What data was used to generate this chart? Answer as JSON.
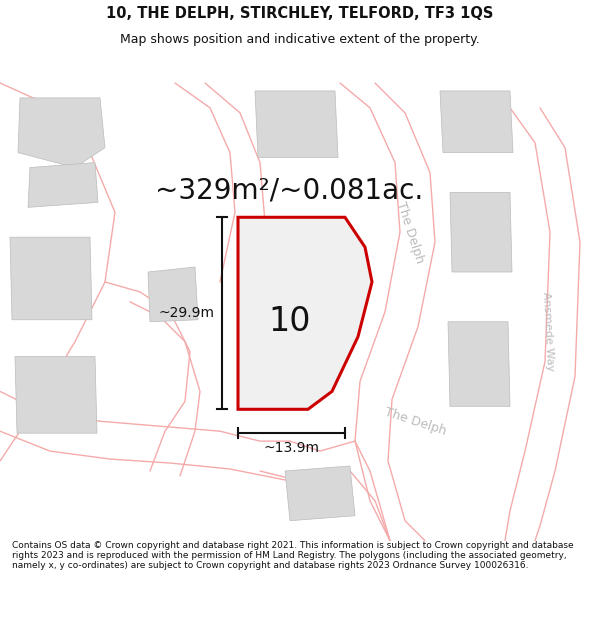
{
  "title_line1": "10, THE DELPH, STIRCHLEY, TELFORD, TF3 1QS",
  "title_line2": "Map shows position and indicative extent of the property.",
  "area_text": "~329m²/~0.081ac.",
  "label_10": "10",
  "dim_height": "~29.9m",
  "dim_width": "~13.9m",
  "road_label1": "The Delph",
  "road_label2": "The Delph",
  "road_label3": "Ansmede Way",
  "footer_text": "Contains OS data © Crown copyright and database right 2021. This information is subject to Crown copyright and database rights 2023 and is reproduced with the permission of HM Land Registry. The polygons (including the associated geometry, namely x, y co-ordinates) are subject to Crown copyright and database rights 2023 Ordnance Survey 100026316.",
  "bg_color": "#ffffff",
  "map_bg": "#ffffff",
  "plot_border_color": "#cc0000",
  "neighbor_fill": "#d8d8d8",
  "neighbor_edge": "#bbbbbb",
  "road_line_color": "#f5aaaa",
  "dim_line_color": "#111111",
  "text_color": "#111111",
  "road_text_color": "#bbbbbb",
  "title_fontsize": 10.5,
  "subtitle_fontsize": 9,
  "area_fontsize": 20,
  "label_fontsize": 24,
  "dim_fontsize": 10,
  "road_fontsize": 9,
  "footer_fontsize": 6.5
}
